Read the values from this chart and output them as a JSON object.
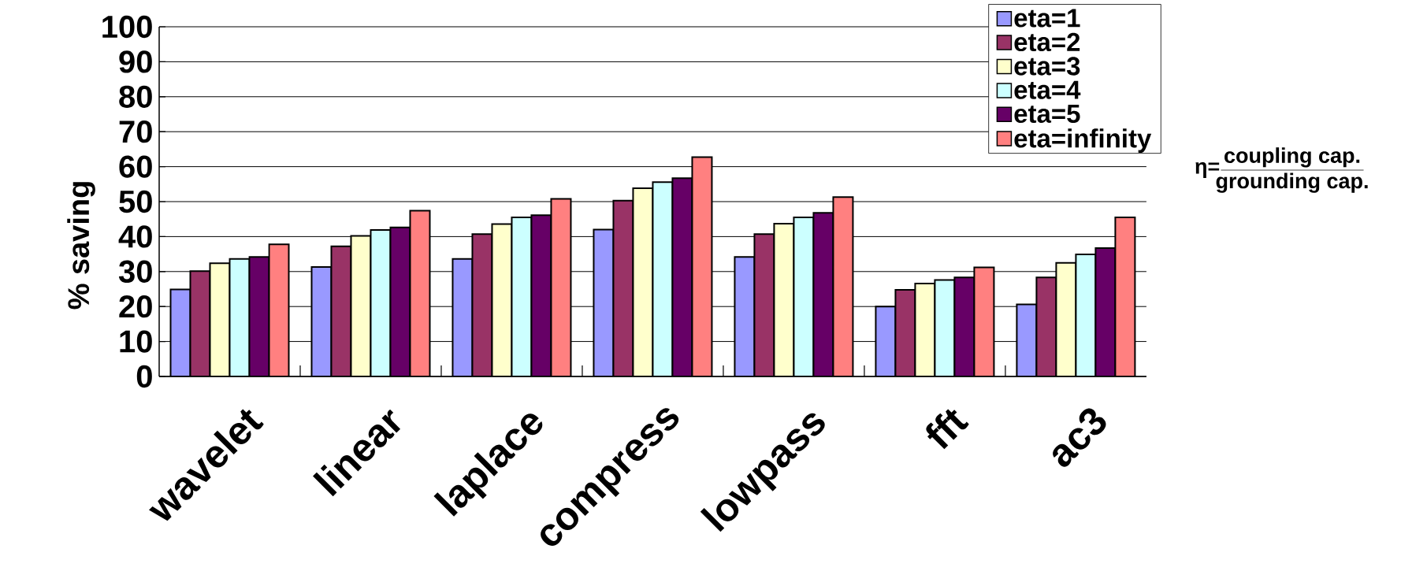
{
  "chart_data": {
    "type": "bar",
    "ylabel": "% saving",
    "categories": [
      "wavelet",
      "linear",
      "laplace",
      "compress",
      "lowpass",
      "fft",
      "ac3"
    ],
    "series": [
      {
        "name": "eta=1",
        "color": "#9999ff",
        "values": [
          24.9,
          31.3,
          33.6,
          42.0,
          34.2,
          20.0,
          20.6
        ]
      },
      {
        "name": "eta=2",
        "color": "#993366",
        "values": [
          30.1,
          37.2,
          40.7,
          50.3,
          40.7,
          24.8,
          28.3
        ]
      },
      {
        "name": "eta=3",
        "color": "#ffffcc",
        "values": [
          32.4,
          40.2,
          43.6,
          53.8,
          43.7,
          26.6,
          32.5
        ]
      },
      {
        "name": "eta=4",
        "color": "#ccffff",
        "values": [
          33.6,
          41.9,
          45.5,
          55.6,
          45.5,
          27.6,
          34.9
        ]
      },
      {
        "name": "eta=5",
        "color": "#660066",
        "values": [
          34.2,
          42.6,
          46.1,
          56.7,
          46.8,
          28.3,
          36.7
        ]
      },
      {
        "name": "eta=infinity",
        "color": "#ff8080",
        "values": [
          37.8,
          47.4,
          50.8,
          62.7,
          51.3,
          31.2,
          45.5
        ]
      }
    ],
    "ylim": [
      0,
      100
    ],
    "yticks": [
      0,
      10,
      20,
      30,
      40,
      50,
      60,
      70,
      80,
      90,
      100
    ],
    "grid": "y",
    "legend": "top right",
    "annotations": [
      "η=",
      "coupling cap.",
      "grounding cap."
    ]
  }
}
